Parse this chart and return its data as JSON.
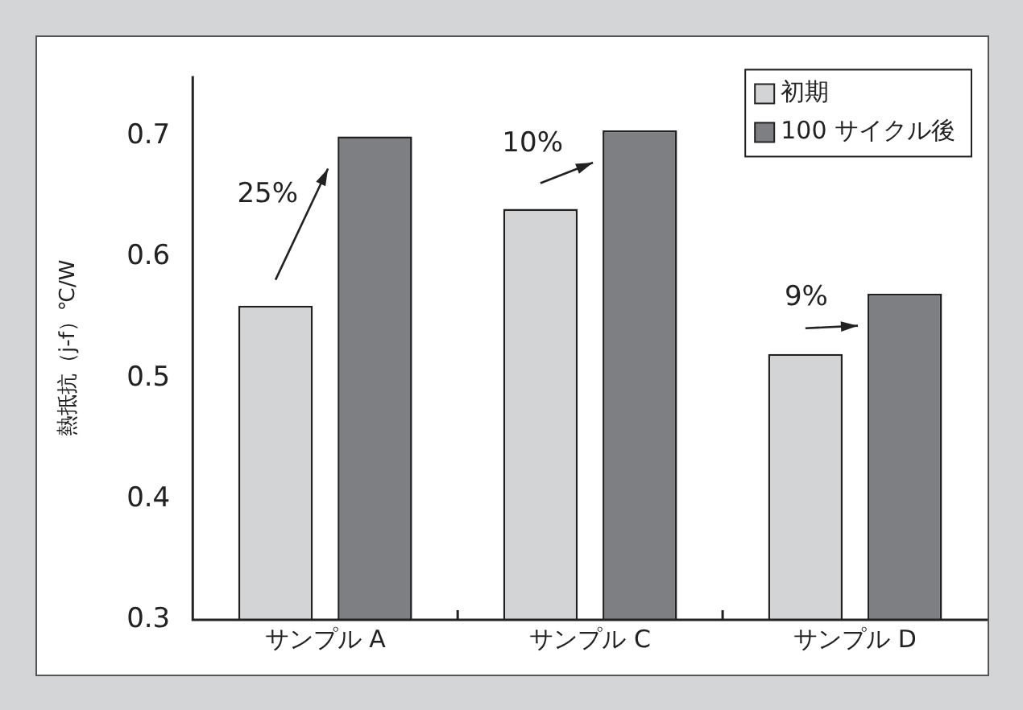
{
  "chart_data": {
    "type": "bar",
    "ylabel": "熱抵抗（j-f）℃/W",
    "categories": [
      "サンプル A",
      "サンプル C",
      "サンプル D"
    ],
    "series": [
      {
        "name": "初期",
        "color": "#d3d4d6",
        "values": [
          0.56,
          0.64,
          0.52
        ]
      },
      {
        "name": "100 サイクル後",
        "color": "#7e7f83",
        "values": [
          0.7,
          0.705,
          0.57
        ]
      }
    ],
    "ylim": [
      0.3,
      0.75
    ],
    "yticks": [
      0.3,
      0.4,
      0.5,
      0.6,
      0.7
    ],
    "grid": false,
    "legend": "top right",
    "annotations": [
      "25%",
      "10%",
      "9%"
    ]
  }
}
